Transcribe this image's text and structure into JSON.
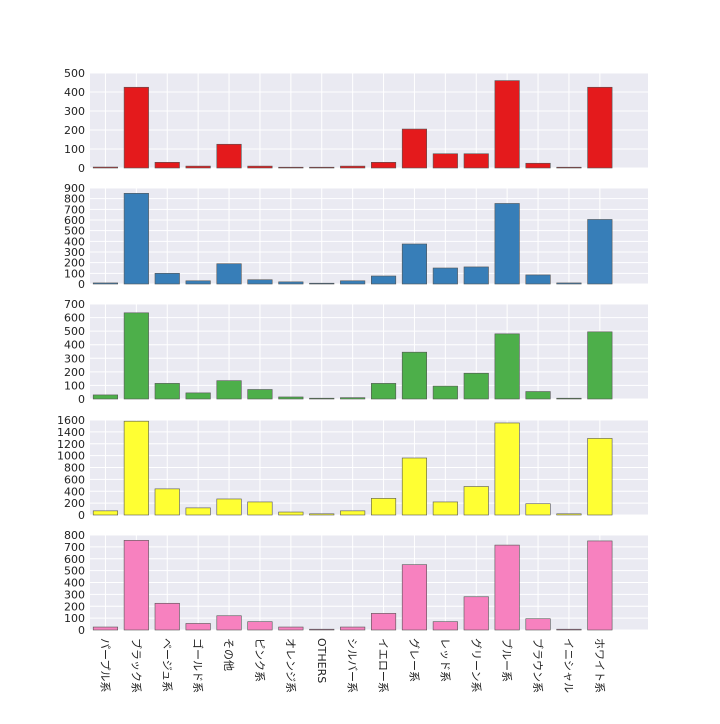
{
  "chart_data": {
    "type": "bar",
    "layout": "5 vertically stacked panels sharing the x axis",
    "style": {
      "panel_background": "#eaeaf2",
      "grid_color": "#ffffff",
      "bar_edge_color": "#555555",
      "grid": true
    },
    "categories": [
      "パープル系",
      "ブラック系",
      "ベージュ系",
      "ゴールド系",
      "その他",
      "ピンク系",
      "オレンジ系",
      "OTHERS",
      "シルバー系",
      "イエロー系",
      "グレー系",
      "レッド系",
      "グリーン系",
      "ブルー系",
      "ブラウン系",
      "イニシャル",
      "ホワイト系"
    ],
    "panels": [
      {
        "color": "#e41a1c",
        "ylim": [
          0,
          500
        ],
        "yticks": [
          0,
          100,
          200,
          300,
          400,
          500
        ],
        "values": [
          5,
          425,
          30,
          10,
          125,
          10,
          2,
          2,
          10,
          30,
          205,
          75,
          75,
          460,
          25,
          2,
          425
        ]
      },
      {
        "color": "#377eb8",
        "ylim": [
          0,
          900
        ],
        "yticks": [
          0,
          100,
          200,
          300,
          400,
          500,
          600,
          700,
          800,
          900
        ],
        "values": [
          10,
          850,
          100,
          30,
          190,
          40,
          20,
          5,
          30,
          75,
          375,
          150,
          160,
          755,
          85,
          10,
          605
        ]
      },
      {
        "color": "#4daf4a",
        "ylim": [
          0,
          700
        ],
        "yticks": [
          0,
          100,
          200,
          300,
          400,
          500,
          600,
          700
        ],
        "values": [
          30,
          635,
          115,
          45,
          135,
          70,
          15,
          2,
          10,
          115,
          345,
          95,
          190,
          480,
          55,
          2,
          495
        ]
      },
      {
        "color": "#ffff33",
        "ylim": [
          0,
          1600
        ],
        "yticks": [
          0,
          200,
          400,
          600,
          800,
          1000,
          1200,
          1400,
          1600
        ],
        "values": [
          70,
          1580,
          440,
          120,
          270,
          220,
          50,
          20,
          70,
          280,
          960,
          220,
          480,
          1550,
          190,
          20,
          1290
        ]
      },
      {
        "color": "#f781bf",
        "ylim": [
          0,
          800
        ],
        "yticks": [
          0,
          100,
          200,
          300,
          400,
          500,
          600,
          700,
          800
        ],
        "values": [
          25,
          755,
          225,
          55,
          120,
          70,
          25,
          2,
          25,
          140,
          550,
          70,
          280,
          715,
          95,
          2,
          750
        ]
      }
    ]
  }
}
